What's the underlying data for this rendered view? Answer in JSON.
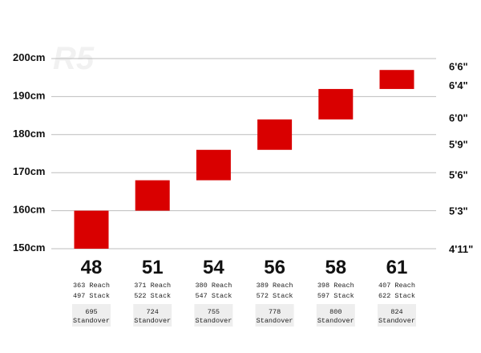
{
  "chart_data": {
    "type": "bar",
    "watermark": "R5",
    "colors": {
      "bar": "#d90000",
      "gridline": "#bdbdbd",
      "standover_box": "#eeeeee"
    },
    "y_unit": "cm",
    "ylim": [
      150,
      200
    ],
    "y_ticks_left": [
      "150cm",
      "160cm",
      "170cm",
      "180cm",
      "190cm",
      "200cm"
    ],
    "y_ticks_right": [
      {
        "label": "4'11\"",
        "value": 150
      },
      {
        "label": "5'3\"",
        "value": 160
      },
      {
        "label": "5'6\"",
        "value": 169.5
      },
      {
        "label": "5'9\"",
        "value": 177.5
      },
      {
        "label": "6'0\"",
        "value": 184.5
      },
      {
        "label": "6'4\"",
        "value": 193
      },
      {
        "label": "6'6\"",
        "value": 198
      }
    ],
    "categories": [
      "48",
      "51",
      "54",
      "56",
      "58",
      "61"
    ],
    "ranges": [
      {
        "size": "48",
        "low": 150,
        "high": 160
      },
      {
        "size": "51",
        "low": 160,
        "high": 168
      },
      {
        "size": "54",
        "low": 168,
        "high": 176
      },
      {
        "size": "56",
        "low": 176,
        "high": 184
      },
      {
        "size": "58",
        "low": 184,
        "high": 192
      },
      {
        "size": "61",
        "low": 192,
        "high": 197
      }
    ],
    "geometry": [
      {
        "reach": "363 Reach",
        "stack": "497 Stack",
        "standover": "695",
        "standover_label": "Standover"
      },
      {
        "reach": "371 Reach",
        "stack": "522 Stack",
        "standover": "724",
        "standover_label": "Standover"
      },
      {
        "reach": "380 Reach",
        "stack": "547 Stack",
        "standover": "755",
        "standover_label": "Standover"
      },
      {
        "reach": "389 Reach",
        "stack": "572 Stack",
        "standover": "778",
        "standover_label": "Standover"
      },
      {
        "reach": "398 Reach",
        "stack": "597 Stack",
        "standover": "800",
        "standover_label": "Standover"
      },
      {
        "reach": "407 Reach",
        "stack": "622 Stack",
        "standover": "824",
        "standover_label": "Standover"
      }
    ]
  }
}
